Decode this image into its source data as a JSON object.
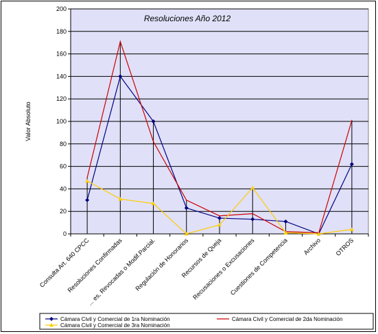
{
  "chart_data": {
    "type": "line",
    "title": "Resoluciones Año 2012",
    "ylabel": "Valor Absoluto",
    "xlabel": "",
    "ylim": [
      0,
      200
    ],
    "yticks": [
      0,
      20,
      40,
      60,
      80,
      100,
      120,
      140,
      160,
      180,
      200
    ],
    "grid": true,
    "legend": "bottom",
    "categories": [
      "Consulta Art. 640 CPCC",
      "Resoluciones Confirmadas",
      "... es, Revocadas o Modif.Parcial.",
      "Regulación de Honorarios",
      "Recursos de Queja",
      "Recusaciones o Excusaciones",
      "Cuestiones de Competencia",
      "Archivo",
      "OTROS"
    ],
    "series": [
      {
        "name": "Cámara Civil y Comercial de 1ra Nominación",
        "color": "#00007f",
        "marker": "diamond",
        "values": [
          30,
          140,
          100,
          23,
          14,
          13,
          11,
          0,
          62
        ]
      },
      {
        "name": "Cámara Civil y Comercial de 2da  Nominación",
        "color": "#cc0000",
        "marker": "none",
        "values": [
          50,
          171,
          82,
          30,
          16,
          18,
          2,
          1,
          101
        ]
      },
      {
        "name": "Cámara Civil y Comercial de 3ra Nominación",
        "color": "#ffcc00",
        "marker": "triangle",
        "values": [
          47,
          31,
          27,
          0,
          8,
          41,
          1,
          0,
          4
        ]
      }
    ]
  }
}
